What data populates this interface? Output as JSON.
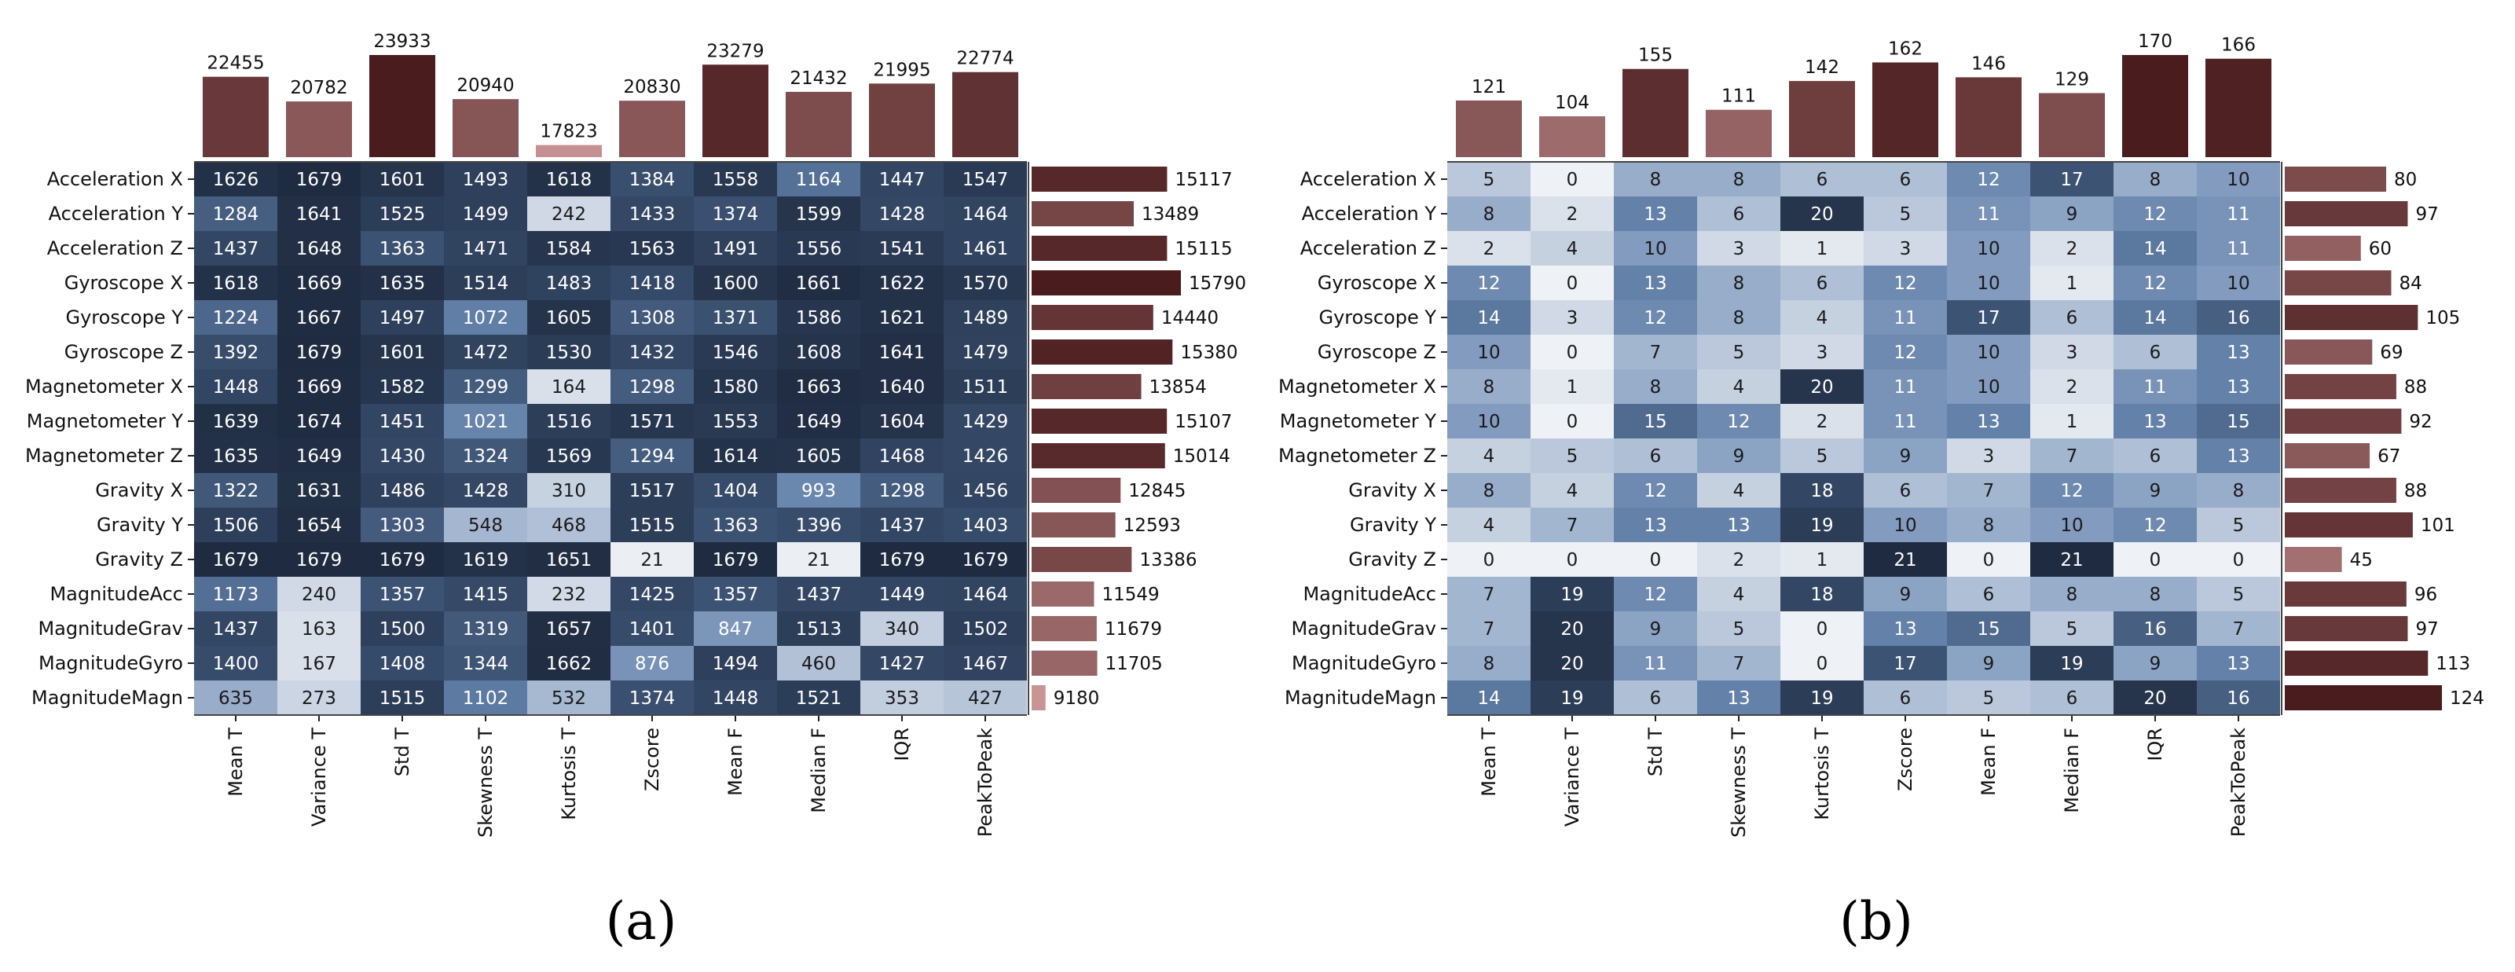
{
  "chart_data": [
    {
      "type": "heatmap",
      "caption": "(a)",
      "rows": [
        "Acceleration X",
        "Acceleration Y",
        "Acceleration Z",
        "Gyroscope X",
        "Gyroscope Y",
        "Gyroscope Z",
        "Magnetometer X",
        "Magnetometer Y",
        "Magnetometer Z",
        "Gravity X",
        "Gravity Y",
        "Gravity Z",
        "MagnitudeAcc",
        "MagnitudeGrav",
        "MagnitudeGyro",
        "MagnitudeMagn"
      ],
      "columns": [
        "Mean T",
        "Variance T",
        "Std T",
        "Skewness T",
        "Kurtosis T",
        "Zscore",
        "Mean F",
        "Median F",
        "IQR",
        "PeakToPeak"
      ],
      "values": [
        [
          1626,
          1679,
          1601,
          1493,
          1618,
          1384,
          1558,
          1164,
          1447,
          1547
        ],
        [
          1284,
          1641,
          1525,
          1499,
          242,
          1433,
          1374,
          1599,
          1428,
          1464
        ],
        [
          1437,
          1648,
          1363,
          1471,
          1584,
          1563,
          1491,
          1556,
          1541,
          1461
        ],
        [
          1618,
          1669,
          1635,
          1514,
          1483,
          1418,
          1600,
          1661,
          1622,
          1570
        ],
        [
          1224,
          1667,
          1497,
          1072,
          1605,
          1308,
          1371,
          1586,
          1621,
          1489
        ],
        [
          1392,
          1679,
          1601,
          1472,
          1530,
          1432,
          1546,
          1608,
          1641,
          1479
        ],
        [
          1448,
          1669,
          1582,
          1299,
          164,
          1298,
          1580,
          1663,
          1640,
          1511
        ],
        [
          1639,
          1674,
          1451,
          1021,
          1516,
          1571,
          1553,
          1649,
          1604,
          1429
        ],
        [
          1635,
          1649,
          1430,
          1324,
          1569,
          1294,
          1614,
          1605,
          1468,
          1426
        ],
        [
          1322,
          1631,
          1486,
          1428,
          310,
          1517,
          1404,
          993,
          1298,
          1456
        ],
        [
          1506,
          1654,
          1303,
          548,
          468,
          1515,
          1363,
          1396,
          1437,
          1403
        ],
        [
          1679,
          1679,
          1679,
          1619,
          1651,
          21,
          1679,
          21,
          1679,
          1679
        ],
        [
          1173,
          240,
          1357,
          1415,
          232,
          1425,
          1357,
          1437,
          1449,
          1464
        ],
        [
          1437,
          163,
          1500,
          1319,
          1657,
          1401,
          847,
          1513,
          340,
          1502
        ],
        [
          1400,
          167,
          1408,
          1344,
          1662,
          876,
          1494,
          460,
          1427,
          1467
        ],
        [
          635,
          273,
          1515,
          1102,
          532,
          1374,
          1448,
          1521,
          353,
          427
        ]
      ],
      "column_totals": [
        22455,
        20782,
        23933,
        20940,
        17823,
        20830,
        23279,
        21432,
        21995,
        22774
      ],
      "row_totals": [
        15117,
        13489,
        15115,
        15790,
        14440,
        15380,
        13854,
        15107,
        15014,
        12845,
        12593,
        13386,
        11549,
        11679,
        11705,
        9180
      ],
      "value_range": [
        0,
        1679
      ]
    },
    {
      "type": "heatmap",
      "caption": "(b)",
      "rows": [
        "Acceleration X",
        "Acceleration Y",
        "Acceleration Z",
        "Gyroscope X",
        "Gyroscope Y",
        "Gyroscope Z",
        "Magnetometer X",
        "Magnetometer Y",
        "Magnetometer Z",
        "Gravity X",
        "Gravity Y",
        "Gravity Z",
        "MagnitudeAcc",
        "MagnitudeGrav",
        "MagnitudeGyro",
        "MagnitudeMagn"
      ],
      "columns": [
        "Mean T",
        "Variance T",
        "Std T",
        "Skewness T",
        "Kurtosis T",
        "Zscore",
        "Mean F",
        "Median F",
        "IQR",
        "PeakToPeak"
      ],
      "values": [
        [
          5,
          0,
          8,
          8,
          6,
          6,
          12,
          17,
          8,
          10
        ],
        [
          8,
          2,
          13,
          6,
          20,
          5,
          11,
          9,
          12,
          11
        ],
        [
          2,
          4,
          10,
          3,
          1,
          3,
          10,
          2,
          14,
          11
        ],
        [
          12,
          0,
          13,
          8,
          6,
          12,
          10,
          1,
          12,
          10
        ],
        [
          14,
          3,
          12,
          8,
          4,
          11,
          17,
          6,
          14,
          16
        ],
        [
          10,
          0,
          7,
          5,
          3,
          12,
          10,
          3,
          6,
          13
        ],
        [
          8,
          1,
          8,
          4,
          20,
          11,
          10,
          2,
          11,
          13
        ],
        [
          10,
          0,
          15,
          12,
          2,
          11,
          13,
          1,
          13,
          15
        ],
        [
          4,
          5,
          6,
          9,
          5,
          9,
          3,
          7,
          6,
          13
        ],
        [
          8,
          4,
          12,
          4,
          18,
          6,
          7,
          12,
          9,
          8
        ],
        [
          4,
          7,
          13,
          13,
          19,
          10,
          8,
          10,
          12,
          5
        ],
        [
          0,
          0,
          0,
          2,
          1,
          21,
          0,
          21,
          0,
          0
        ],
        [
          7,
          19,
          12,
          4,
          18,
          9,
          6,
          8,
          8,
          5
        ],
        [
          7,
          20,
          9,
          5,
          0,
          13,
          15,
          5,
          16,
          7
        ],
        [
          8,
          20,
          11,
          7,
          0,
          17,
          9,
          19,
          9,
          13
        ],
        [
          14,
          19,
          6,
          13,
          19,
          6,
          5,
          6,
          20,
          16
        ]
      ],
      "column_totals": [
        121,
        104,
        155,
        111,
        142,
        162,
        146,
        129,
        170,
        166
      ],
      "row_totals": [
        80,
        97,
        60,
        84,
        105,
        69,
        88,
        92,
        67,
        88,
        101,
        45,
        96,
        97,
        113,
        124
      ],
      "value_range": [
        0,
        21
      ]
    }
  ]
}
